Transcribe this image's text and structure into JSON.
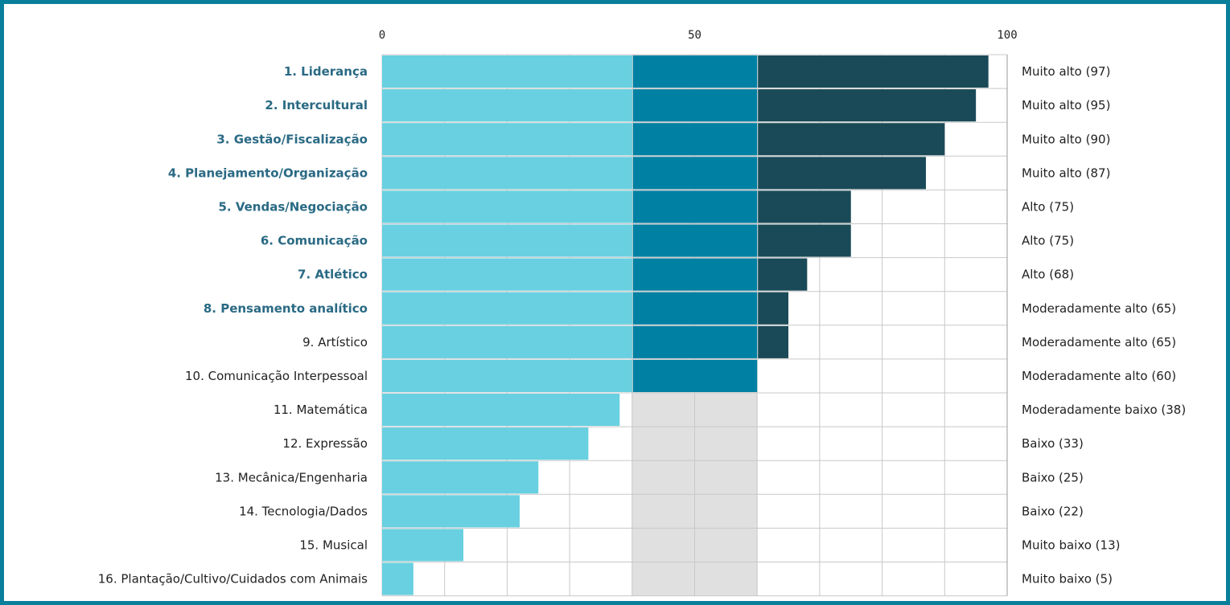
{
  "chart_data": {
    "type": "bar",
    "orientation": "horizontal",
    "xlim": [
      0,
      100
    ],
    "xticks": [
      0,
      50,
      100
    ],
    "bands": [
      {
        "from": 0,
        "to": 40,
        "color": "#68d0e0"
      },
      {
        "from": 40,
        "to": 60,
        "color": "#0081a3"
      },
      {
        "from": 60,
        "to": 100,
        "color": "#1a4a57"
      }
    ],
    "middle_range_shade": {
      "from": 40,
      "to": 60,
      "color": "#e0e0e0"
    },
    "grid": true,
    "bold_label_color": "#2a6a84",
    "categories": [
      {
        "label": "1. Liderança",
        "value": 97,
        "level": "Muito alto (97)",
        "bold": true
      },
      {
        "label": "2. Intercultural",
        "value": 95,
        "level": "Muito alto (95)",
        "bold": true
      },
      {
        "label": "3. Gestão/Fiscalização",
        "value": 90,
        "level": "Muito alto (90)",
        "bold": true
      },
      {
        "label": "4. Planejamento/Organização",
        "value": 87,
        "level": "Muito alto (87)",
        "bold": true
      },
      {
        "label": "5. Vendas/Negociação",
        "value": 75,
        "level": "Alto (75)",
        "bold": true
      },
      {
        "label": "6. Comunicação",
        "value": 75,
        "level": "Alto (75)",
        "bold": true
      },
      {
        "label": "7. Atlético",
        "value": 68,
        "level": "Alto (68)",
        "bold": true
      },
      {
        "label": "8. Pensamento analítico",
        "value": 65,
        "level": "Moderadamente alto (65)",
        "bold": true
      },
      {
        "label": "9. Artístico",
        "value": 65,
        "level": "Moderadamente alto (65)",
        "bold": false
      },
      {
        "label": "10. Comunicação Interpessoal",
        "value": 60,
        "level": "Moderadamente alto (60)",
        "bold": false
      },
      {
        "label": "11. Matemática",
        "value": 38,
        "level": "Moderadamente baixo (38)",
        "bold": false
      },
      {
        "label": "12. Expressão",
        "value": 33,
        "level": "Baixo (33)",
        "bold": false
      },
      {
        "label": "13. Mecânica/Engenharia",
        "value": 25,
        "level": "Baixo (25)",
        "bold": false
      },
      {
        "label": "14. Tecnologia/Dados",
        "value": 22,
        "level": "Baixo (22)",
        "bold": false
      },
      {
        "label": "15. Musical",
        "value": 13,
        "level": "Muito baixo (13)",
        "bold": false
      },
      {
        "label": "16. Plantação/Cultivo/Cuidados com Animais",
        "value": 5,
        "level": "Muito baixo (5)",
        "bold": false
      }
    ]
  }
}
